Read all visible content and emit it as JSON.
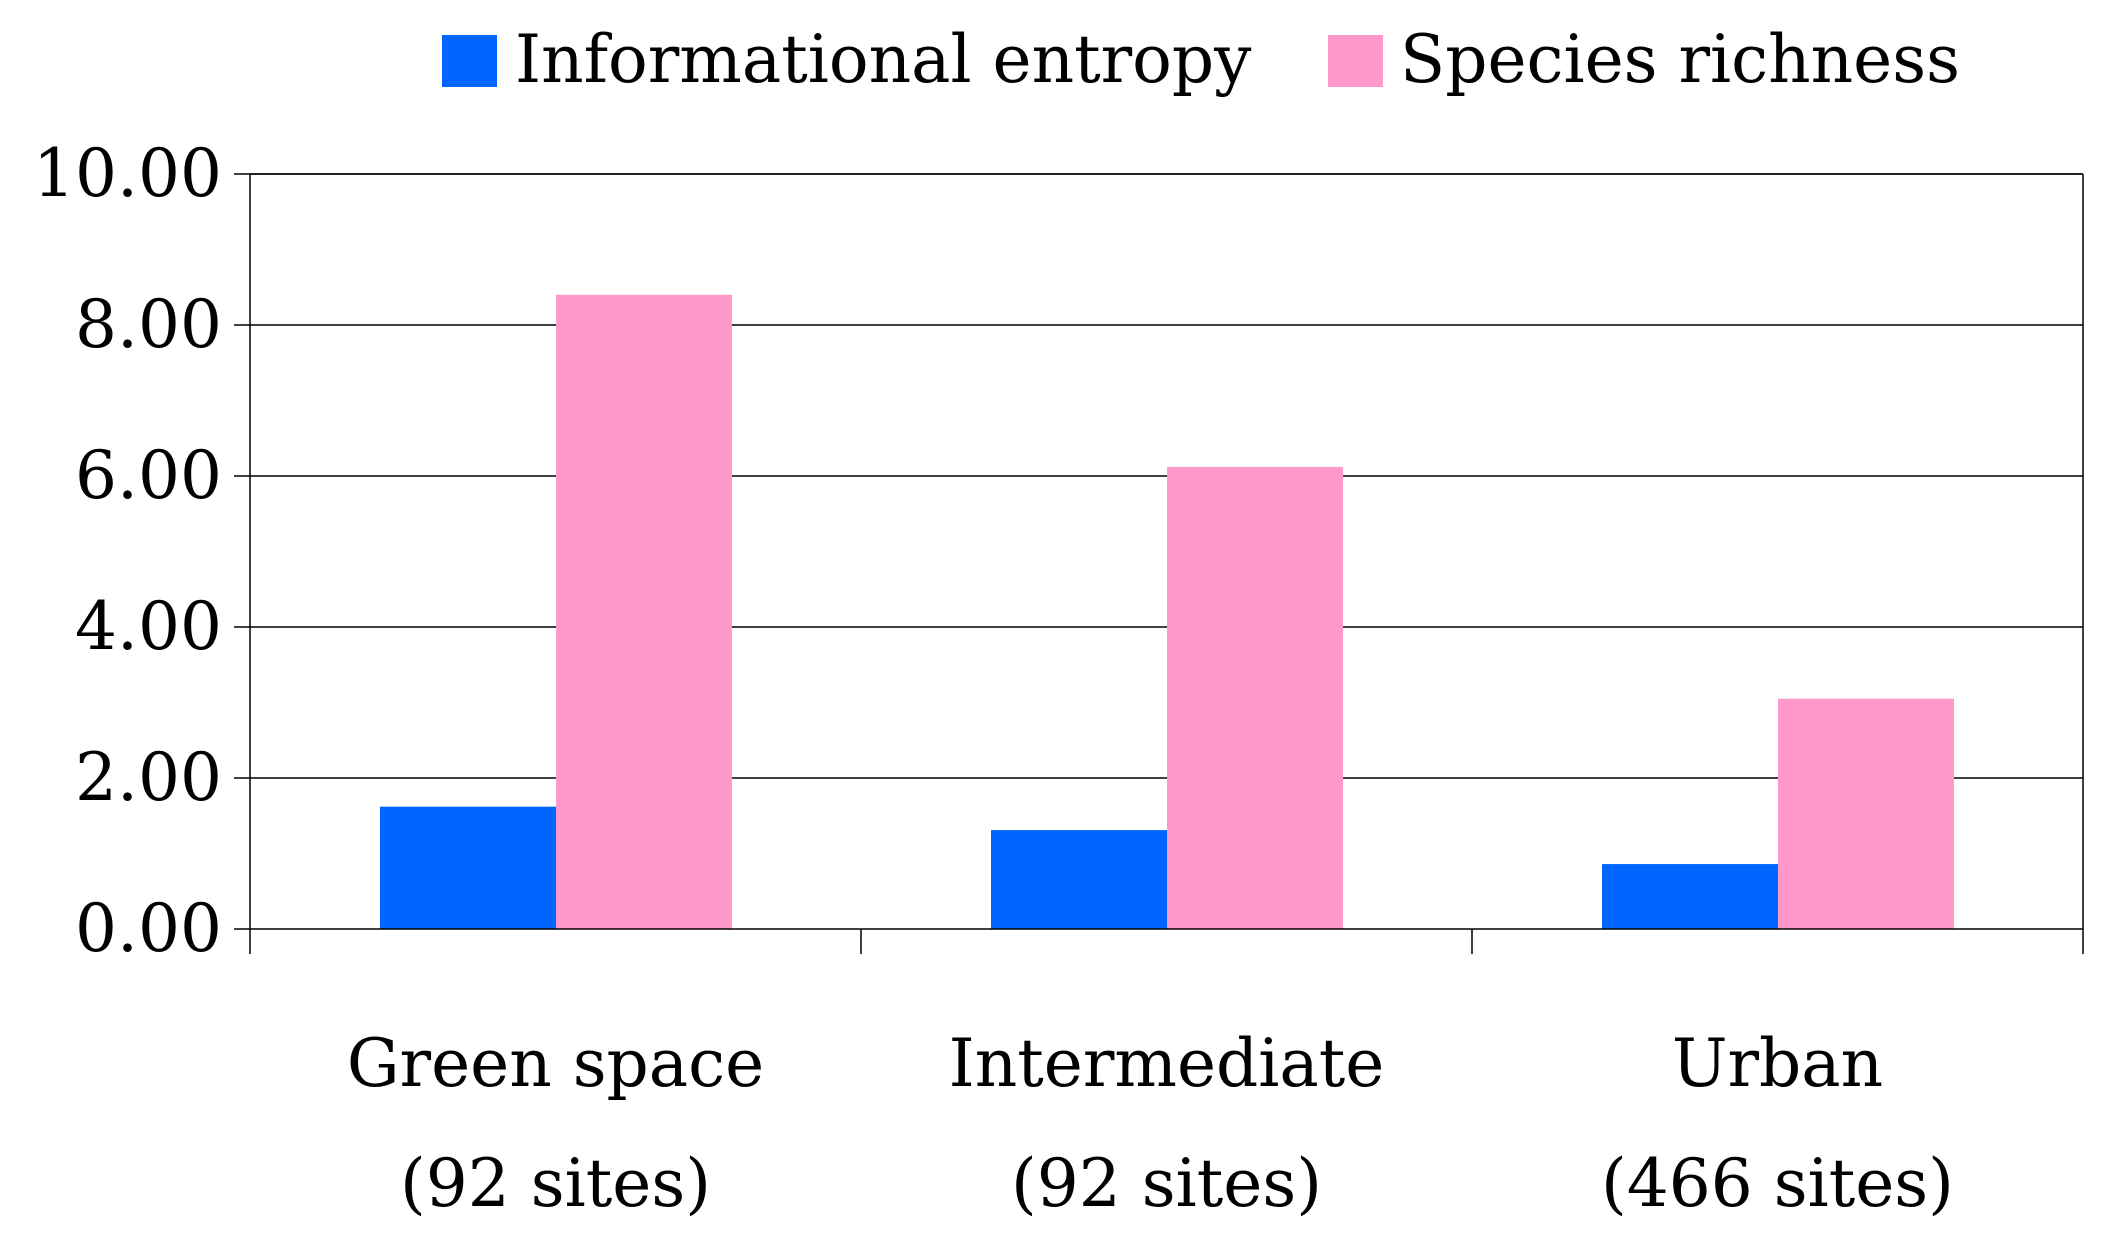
{
  "chart_data": {
    "type": "bar",
    "title": "",
    "xlabel": "",
    "ylabel": "",
    "ylim": [
      0,
      10
    ],
    "yticks": [
      "0.00",
      "2.00",
      "4.00",
      "6.00",
      "8.00",
      "10.00"
    ],
    "categories": [
      {
        "line1": "Green space",
        "line2": "(92 sites)"
      },
      {
        "line1": "Intermediate",
        "line2": "(92 sites)"
      },
      {
        "line1": "Urban",
        "line2": "(466 sites)"
      }
    ],
    "series": [
      {
        "name": "Informational entropy",
        "color": "#0066ff",
        "values": [
          1.62,
          1.31,
          0.86
        ]
      },
      {
        "name": "Species richness",
        "color": "#ff99cc",
        "values": [
          8.4,
          6.12,
          3.05
        ]
      }
    ],
    "grid": true,
    "legend_position": "top"
  }
}
